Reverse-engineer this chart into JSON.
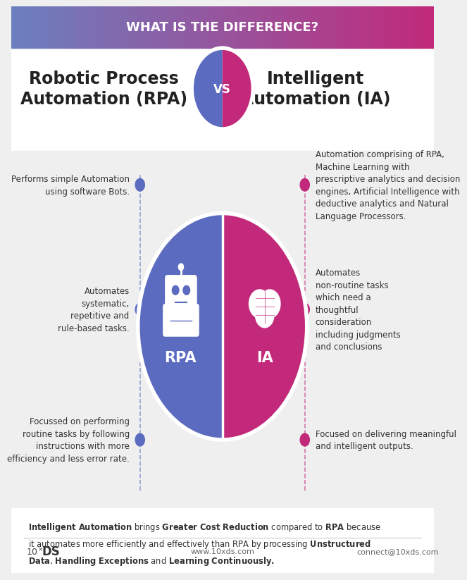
{
  "title_banner": "WHAT IS THE DIFFERENCE?",
  "banner_color_left": "#6B7FBF",
  "banner_color_right": "#C2297A",
  "rpa_title": "Robotic Process\nAutomation (RPA)",
  "ia_title": "Intelligent\nAutomation (IA)",
  "vs_text": "VS",
  "rpa_color": "#5B6BBF",
  "ia_color": "#C2297A",
  "background_color": "#EFEFEF",
  "text_color": "#333333",
  "rpa_dot_color": "#5B6BBF",
  "ia_dot_color": "#C2297A",
  "bullet_points_left": [
    "Performs simple Automation\nusing software Bots.",
    "Automates\nsystematic,\nrepetitive and\nrule-based tasks.",
    "Focussed on performing\nroutine tasks by following\ninstructions with more\nefficiency and less error rate."
  ],
  "bullet_points_right": [
    "Automation comprising of RPA,\nMachine Learning with\nprescriptive analytics and decision\nengines, Artificial Intelligence with\ndeductive analytics and Natural\nLanguage Processors.",
    "Automates\nnon-routine tasks\nwhich need a\nthoughtful\nconsideration\nincluding judgments\nand conclusions",
    "Focused on delivering meaningful\nand intelligent outputs."
  ],
  "footer_website": "www.10xds.com",
  "footer_contact": "connect@10xds.com"
}
